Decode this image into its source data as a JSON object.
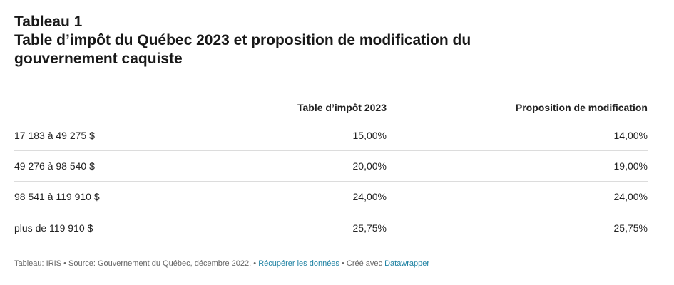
{
  "title_line1": "Tableau 1",
  "title_line2": "Table d’impôt du Québec 2023 et proposition de modification du",
  "title_line3": "gouvernement caquiste",
  "chart_data": {
    "type": "table",
    "columns": [
      "",
      "Table d’impôt 2023",
      "Proposition de modification"
    ],
    "rows": [
      [
        "17 183 à 49 275 $",
        "15,00%",
        "14,00%"
      ],
      [
        "49 276 à 98 540 $",
        "20,00%",
        "19,00%"
      ],
      [
        "98 541 à 119 910 $",
        "24,00%",
        "24,00%"
      ],
      [
        "plus de 119 910 $",
        "25,75%",
        "25,75%"
      ]
    ]
  },
  "footer": {
    "text": "Tableau: IRIS • Source: Gouvernement du Québec, décembre 2022. • ",
    "download_link": "Récupérer les données",
    "created_with": " • Créé avec ",
    "datawrapper_link": "Datawrapper"
  },
  "colors": {
    "link": "#1d81a2",
    "text": "#181818",
    "rule": "#333333",
    "divider": "#dcdcdc"
  }
}
